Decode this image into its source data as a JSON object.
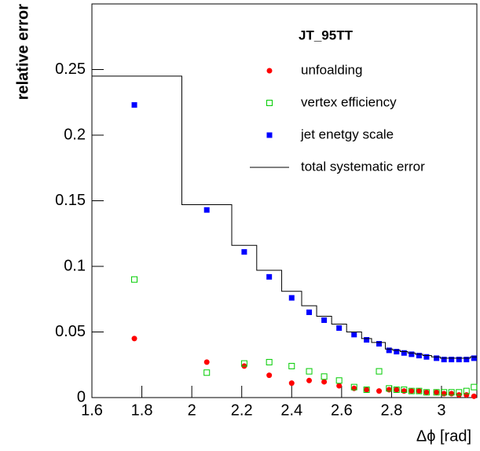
{
  "chart_data": {
    "type": "scatter",
    "legend_title": "JT_95TT",
    "x_label": "Δϕ [rad]",
    "y_label": "relative error",
    "x": [
      1.77,
      2.06,
      2.21,
      2.31,
      2.4,
      2.47,
      2.53,
      2.59,
      2.65,
      2.7,
      2.75,
      2.79,
      2.82,
      2.85,
      2.88,
      2.91,
      2.94,
      2.98,
      3.01,
      3.04,
      3.07,
      3.1,
      3.13
    ],
    "series": [
      {
        "name": "unfoalding",
        "color": "#ff0000",
        "marker": "circle",
        "values": [
          0.045,
          0.027,
          0.024,
          0.017,
          0.011,
          0.013,
          0.012,
          0.009,
          0.007,
          0.006,
          0.005,
          0.006,
          0.006,
          0.005,
          0.005,
          0.005,
          0.004,
          0.004,
          0.003,
          0.003,
          0.002,
          0.002,
          0.001
        ]
      },
      {
        "name": "vertex efficiency",
        "color": "#00cc00",
        "marker": "open-square",
        "values": [
          0.09,
          0.019,
          0.026,
          0.027,
          0.024,
          0.02,
          0.016,
          0.013,
          0.008,
          0.006,
          0.02,
          0.007,
          0.006,
          0.006,
          0.005,
          0.005,
          0.004,
          0.004,
          0.004,
          0.004,
          0.004,
          0.005,
          0.008
        ]
      },
      {
        "name": "jet enetgy scale",
        "color": "#0000ff",
        "marker": "square",
        "values": [
          0.223,
          0.143,
          0.111,
          0.092,
          0.076,
          0.065,
          0.059,
          0.053,
          0.048,
          0.044,
          0.041,
          0.036,
          0.035,
          0.034,
          0.033,
          0.032,
          0.031,
          0.03,
          0.029,
          0.029,
          0.029,
          0.029,
          0.03
        ]
      },
      {
        "name": "total systematic error",
        "color": "#000000",
        "marker": "step",
        "bins": [
          1.6,
          1.96,
          2.16,
          2.26,
          2.36,
          2.44,
          2.5,
          2.56,
          2.62,
          2.68,
          2.72,
          2.775,
          2.805,
          2.835,
          2.865,
          2.895,
          2.925,
          2.96,
          2.995,
          3.025,
          3.055,
          3.085,
          3.115,
          3.14159
        ],
        "values": [
          0.245,
          0.147,
          0.116,
          0.097,
          0.081,
          0.07,
          0.062,
          0.056,
          0.05,
          0.045,
          0.042,
          0.037,
          0.036,
          0.035,
          0.034,
          0.033,
          0.032,
          0.031,
          0.03,
          0.03,
          0.03,
          0.03,
          0.031
        ]
      }
    ],
    "xlim": [
      1.6,
      3.14159
    ],
    "ylim": [
      0,
      0.3
    ],
    "xticks": [
      1.6,
      1.8,
      2,
      2.2,
      2.4,
      2.6,
      2.8,
      3
    ],
    "yticks": [
      0,
      0.05,
      0.1,
      0.15,
      0.2,
      0.25
    ],
    "grid": false
  }
}
